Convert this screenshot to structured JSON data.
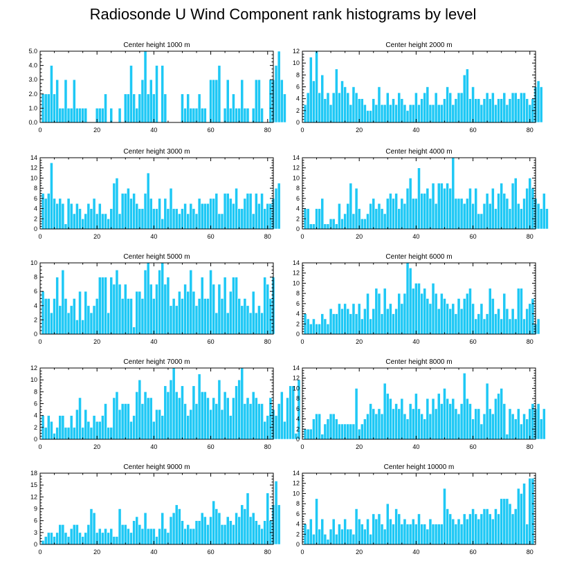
{
  "title": "Radiosonde U Wind Component rank histograms by level",
  "colors": {
    "bar": "#1ec8f5",
    "bar_edge": "#ffffff",
    "axis": "#000000"
  },
  "chart_data": [
    {
      "type": "bar",
      "title": "Center height 1000 m",
      "xlim": [
        0,
        82
      ],
      "xticks": [
        0,
        20,
        40,
        60,
        80
      ],
      "ylim": [
        0,
        5
      ],
      "yticks": [
        0.0,
        1.0,
        2.0,
        3.0,
        4.0,
        5.0
      ],
      "ytick_labels": [
        "0.0",
        "1.0",
        "2.0",
        "3.0",
        "4.0",
        "5.0"
      ],
      "values": [
        2,
        2,
        2,
        4,
        2,
        3,
        1,
        1,
        3,
        1,
        1,
        3,
        1,
        1,
        1,
        1,
        0,
        0,
        0,
        1,
        1,
        1,
        2,
        0,
        1,
        0,
        0,
        1,
        0,
        2,
        2,
        4,
        2,
        1,
        2,
        3,
        5,
        2,
        3,
        2,
        4,
        0,
        4,
        2,
        0,
        0,
        0,
        0,
        0,
        2,
        1,
        2,
        1,
        1,
        1,
        2,
        1,
        1,
        0,
        3,
        3,
        3,
        4,
        0,
        1,
        3,
        1,
        2,
        1,
        1,
        3,
        1,
        1,
        0,
        1,
        3,
        3,
        1,
        0,
        0,
        3,
        3,
        4,
        5,
        3,
        2
      ]
    },
    {
      "type": "bar",
      "title": "Center height 2000 m",
      "xlim": [
        0,
        82
      ],
      "xticks": [
        0,
        20,
        40,
        60,
        80
      ],
      "ylim": [
        0,
        12
      ],
      "yticks": [
        0,
        2,
        4,
        6,
        8,
        10,
        12
      ],
      "ytick_labels": [
        "0",
        "2",
        "4",
        "6",
        "8",
        "10",
        "12"
      ],
      "values": [
        3,
        5,
        11,
        7,
        12,
        5,
        8,
        4,
        5,
        3,
        5,
        9,
        5,
        7,
        6,
        5,
        3,
        6,
        5,
        4,
        4,
        3,
        2,
        2,
        4,
        3,
        6,
        3,
        3,
        5,
        3,
        4,
        3,
        5,
        4,
        3,
        2,
        3,
        3,
        5,
        3,
        4,
        5,
        6,
        3,
        3,
        5,
        3,
        3,
        4,
        6,
        5,
        3,
        4,
        5,
        5,
        8,
        9,
        4,
        6,
        4,
        4,
        3,
        4,
        5,
        4,
        5,
        3,
        4,
        4,
        5,
        3,
        4,
        5,
        5,
        4,
        5,
        5,
        4,
        3,
        4,
        6,
        7,
        6
      ]
    },
    {
      "type": "bar",
      "title": "Center height 3000 m",
      "xlim": [
        0,
        82
      ],
      "xticks": [
        0,
        20,
        40,
        60,
        80
      ],
      "ylim": [
        0,
        14
      ],
      "yticks": [
        0,
        2,
        4,
        6,
        8,
        10,
        12,
        14
      ],
      "ytick_labels": [
        "0",
        "2",
        "4",
        "6",
        "8",
        "10",
        "12",
        "14"
      ],
      "values": [
        7,
        6,
        7,
        13,
        6,
        5,
        6,
        5,
        1,
        6,
        5,
        3,
        5,
        4,
        2,
        3,
        5,
        4,
        6,
        3,
        5,
        3,
        3,
        2,
        4,
        9,
        10,
        3,
        7,
        7,
        8,
        6,
        7,
        5,
        4,
        4,
        7,
        11,
        6,
        4,
        4,
        6,
        2,
        6,
        4,
        8,
        4,
        4,
        3,
        4,
        5,
        3,
        5,
        4,
        3,
        6,
        5,
        5,
        5,
        6,
        6,
        7,
        3,
        3,
        7,
        7,
        6,
        5,
        8,
        4,
        4,
        6,
        7,
        7,
        3,
        7,
        5,
        7,
        4,
        5,
        5,
        6,
        8,
        9
      ]
    },
    {
      "type": "bar",
      "title": "Center height 4000 m",
      "xlim": [
        0,
        82
      ],
      "xticks": [
        0,
        20,
        40,
        60,
        80
      ],
      "ylim": [
        0,
        14
      ],
      "yticks": [
        0,
        2,
        4,
        6,
        8,
        10,
        12,
        14
      ],
      "ytick_labels": [
        "0",
        "2",
        "4",
        "6",
        "8",
        "10",
        "12",
        "14"
      ],
      "values": [
        4,
        4,
        1,
        1,
        4,
        4,
        6,
        1,
        1,
        2,
        2,
        1,
        5,
        2,
        3,
        5,
        9,
        3,
        8,
        4,
        2,
        2,
        3,
        5,
        6,
        4,
        5,
        4,
        3,
        6,
        7,
        6,
        7,
        4,
        6,
        5,
        8,
        10,
        6,
        6,
        12,
        7,
        7,
        8,
        6,
        9,
        5,
        9,
        9,
        8,
        9,
        8,
        14,
        6,
        6,
        6,
        5,
        6,
        8,
        5,
        8,
        3,
        3,
        5,
        7,
        5,
        8,
        4,
        7,
        9,
        7,
        6,
        4,
        9,
        10,
        5,
        4,
        6,
        8,
        10,
        8,
        6,
        5,
        4,
        7,
        4
      ]
    },
    {
      "type": "bar",
      "title": "Center height 5000 m",
      "xlim": [
        0,
        82
      ],
      "xticks": [
        0,
        20,
        40,
        60,
        80
      ],
      "ylim": [
        0,
        10
      ],
      "yticks": [
        0,
        2,
        4,
        6,
        8,
        10
      ],
      "ytick_labels": [
        "0",
        "2",
        "4",
        "6",
        "8",
        "10"
      ],
      "values": [
        6,
        5,
        5,
        3,
        5,
        8,
        4,
        9,
        5,
        3,
        4,
        5,
        2,
        6,
        2,
        6,
        4,
        3,
        4,
        5,
        8,
        8,
        8,
        3,
        8,
        7,
        9,
        7,
        5,
        7,
        5,
        5,
        1,
        6,
        6,
        5,
        9,
        10,
        7,
        5,
        7,
        9,
        10,
        7,
        8,
        4,
        5,
        4,
        6,
        5,
        7,
        6,
        9,
        6,
        4,
        5,
        8,
        5,
        5,
        9,
        7,
        3,
        7,
        5,
        8,
        3,
        6,
        8,
        8,
        5,
        4,
        5,
        4,
        3,
        6,
        3,
        4,
        3,
        8,
        7,
        5,
        8
      ]
    },
    {
      "type": "bar",
      "title": "Center height 6000 m",
      "xlim": [
        0,
        82
      ],
      "xticks": [
        0,
        20,
        40,
        60,
        80
      ],
      "ylim": [
        0,
        14
      ],
      "yticks": [
        0,
        2,
        4,
        6,
        8,
        10,
        12,
        14
      ],
      "ytick_labels": [
        "0",
        "2",
        "4",
        "6",
        "8",
        "10",
        "12",
        "14"
      ],
      "values": [
        4,
        3,
        2,
        3,
        2,
        2,
        4,
        3,
        2,
        5,
        4,
        4,
        6,
        5,
        6,
        5,
        4,
        6,
        4,
        6,
        3,
        5,
        8,
        3,
        5,
        9,
        8,
        4,
        9,
        5,
        6,
        4,
        5,
        8,
        6,
        8,
        14,
        13,
        9,
        10,
        10,
        8,
        9,
        7,
        6,
        10,
        8,
        5,
        8,
        7,
        6,
        5,
        6,
        4,
        7,
        5,
        7,
        8,
        9,
        6,
        3,
        4,
        6,
        3,
        4,
        9,
        7,
        4,
        5,
        3,
        8,
        5,
        3,
        5,
        3,
        9,
        9,
        3,
        5,
        6,
        7,
        2,
        3
      ]
    },
    {
      "type": "bar",
      "title": "Center height 7000 m",
      "xlim": [
        0,
        82
      ],
      "xticks": [
        0,
        20,
        40,
        60,
        80
      ],
      "ylim": [
        0,
        12
      ],
      "yticks": [
        0,
        2,
        4,
        6,
        8,
        10,
        12
      ],
      "ytick_labels": [
        "0",
        "2",
        "4",
        "6",
        "8",
        "10",
        "12"
      ],
      "values": [
        4,
        2,
        4,
        3,
        1,
        2,
        4,
        4,
        2,
        2,
        4,
        2,
        5,
        7,
        2,
        5,
        3,
        2,
        4,
        3,
        3,
        4,
        6,
        2,
        2,
        7,
        8,
        5,
        6,
        6,
        6,
        3,
        4,
        8,
        10,
        6,
        8,
        7,
        7,
        3,
        5,
        5,
        4,
        9,
        8,
        10,
        12,
        8,
        7,
        9,
        6,
        4,
        5,
        9,
        6,
        11,
        8,
        8,
        7,
        5,
        7,
        6,
        10,
        5,
        8,
        7,
        4,
        7,
        9,
        10,
        12,
        6,
        7,
        6,
        8,
        7,
        6,
        6,
        3,
        4,
        7,
        5,
        4,
        6,
        8,
        3,
        7,
        9,
        9,
        1,
        10
      ]
    },
    {
      "type": "bar",
      "title": "Center height 8000 m",
      "xlim": [
        0,
        82
      ],
      "xticks": [
        0,
        20,
        40,
        60,
        80
      ],
      "ylim": [
        0,
        14
      ],
      "yticks": [
        0,
        2,
        4,
        6,
        8,
        10,
        12,
        14
      ],
      "ytick_labels": [
        "0",
        "2",
        "4",
        "6",
        "8",
        "10",
        "12",
        "14"
      ],
      "values": [
        2,
        2,
        2,
        4,
        5,
        5,
        1,
        3,
        4,
        5,
        5,
        4,
        3,
        3,
        3,
        3,
        3,
        3,
        10,
        2,
        3,
        4,
        5,
        7,
        6,
        5,
        6,
        5,
        11,
        9,
        8,
        6,
        7,
        6,
        8,
        5,
        4,
        7,
        6,
        9,
        6,
        5,
        4,
        8,
        5,
        8,
        6,
        9,
        7,
        10,
        8,
        7,
        8,
        6,
        5,
        7,
        13,
        8,
        7,
        4,
        6,
        6,
        3,
        5,
        11,
        6,
        5,
        8,
        9,
        10,
        7,
        1,
        6,
        5,
        4,
        6,
        3,
        5,
        4,
        6,
        7,
        6,
        7,
        4,
        6
      ]
    },
    {
      "type": "bar",
      "title": "Center height 9000 m",
      "xlim": [
        0,
        82
      ],
      "xticks": [
        0,
        20,
        40,
        60,
        80
      ],
      "ylim": [
        0,
        18
      ],
      "yticks": [
        0,
        3,
        6,
        9,
        12,
        15,
        18
      ],
      "ytick_labels": [
        "0",
        "3",
        "6",
        "9",
        "12",
        "15",
        "18"
      ],
      "values": [
        1,
        2,
        3,
        3,
        2,
        3,
        5,
        5,
        3,
        2,
        4,
        5,
        5,
        3,
        2,
        3,
        5,
        9,
        8,
        3,
        4,
        3,
        4,
        3,
        4,
        2,
        2,
        9,
        5,
        5,
        4,
        3,
        6,
        7,
        5,
        4,
        8,
        4,
        4,
        4,
        2,
        4,
        8,
        4,
        3,
        7,
        8,
        10,
        9,
        6,
        4,
        5,
        4,
        4,
        6,
        6,
        8,
        7,
        5,
        7,
        11,
        9,
        8,
        5,
        5,
        7,
        6,
        5,
        8,
        7,
        10,
        9,
        13,
        7,
        8,
        6,
        5,
        4,
        6,
        13,
        6,
        10,
        16,
        10
      ]
    },
    {
      "type": "bar",
      "title": "Center height 10000 m",
      "xlim": [
        0,
        82
      ],
      "xticks": [
        0,
        20,
        40,
        60,
        80
      ],
      "ylim": [
        0,
        14
      ],
      "yticks": [
        0,
        2,
        4,
        6,
        8,
        10,
        12,
        14
      ],
      "ytick_labels": [
        "0",
        "2",
        "4",
        "6",
        "8",
        "10",
        "12",
        "14"
      ],
      "values": [
        4,
        3,
        5,
        2,
        9,
        3,
        5,
        2,
        1,
        3,
        5,
        2,
        4,
        3,
        5,
        3,
        3,
        2,
        7,
        5,
        4,
        3,
        5,
        2,
        6,
        5,
        6,
        4,
        3,
        8,
        5,
        4,
        7,
        6,
        4,
        5,
        4,
        4,
        5,
        4,
        6,
        4,
        4,
        3,
        5,
        4,
        4,
        4,
        4,
        11,
        7,
        6,
        5,
        4,
        5,
        4,
        6,
        5,
        6,
        7,
        6,
        5,
        6,
        7,
        7,
        6,
        5,
        7,
        6,
        9,
        9,
        9,
        8,
        6,
        7,
        11,
        10,
        12,
        4,
        13,
        13
      ]
    }
  ]
}
